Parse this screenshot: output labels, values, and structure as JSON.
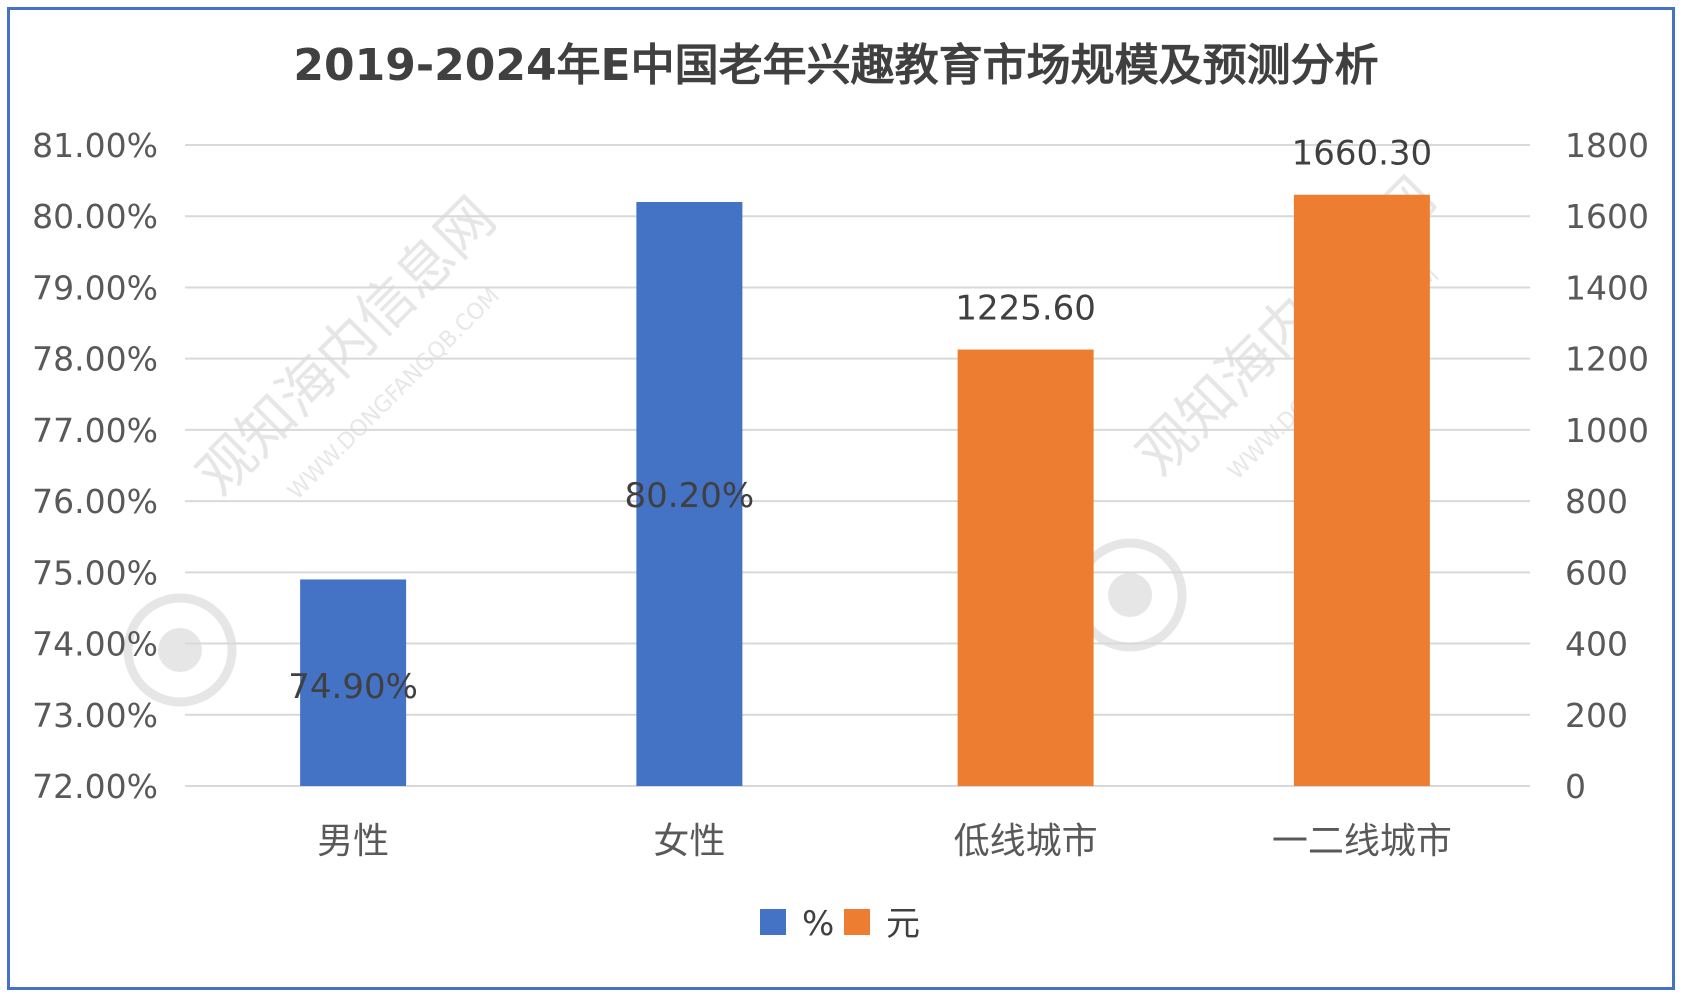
{
  "chart_data": {
    "type": "bar",
    "title": "2019-2024年E中国老年兴趣教育市场规模及预测分析",
    "categories": [
      "男性",
      "女性",
      "低线城市",
      "一二线城市"
    ],
    "series": [
      {
        "name": "%",
        "axis": "left",
        "color": "#4472C4",
        "values": [
          74.9,
          80.2,
          null,
          null
        ],
        "labels": [
          "74.90%",
          "80.20%",
          "",
          ""
        ]
      },
      {
        "name": "元",
        "axis": "right",
        "color": "#ED7D31",
        "values": [
          null,
          null,
          1225.6,
          1660.3
        ],
        "labels": [
          "",
          "",
          "1225.60",
          "1660.30"
        ]
      }
    ],
    "y_left": {
      "range": [
        72,
        81
      ],
      "ticks": [
        "72.00%",
        "73.00%",
        "74.00%",
        "75.00%",
        "76.00%",
        "77.00%",
        "78.00%",
        "79.00%",
        "80.00%",
        "81.00%"
      ]
    },
    "y_right": {
      "range": [
        0,
        1800
      ],
      "ticks": [
        "0",
        "200",
        "400",
        "600",
        "800",
        "1000",
        "1200",
        "1400",
        "1600",
        "1800"
      ]
    },
    "grid": true,
    "legend_position": "bottom"
  },
  "watermark": {
    "brand": "观知海内信息网",
    "url": "WWW.DONGFANGQB.COM"
  },
  "colors": {
    "frame": "#4472C4",
    "grid": "#D9D9D9"
  }
}
